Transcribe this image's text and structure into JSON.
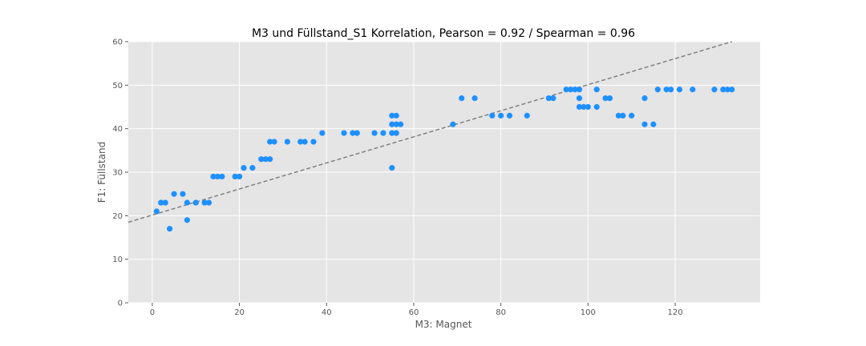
{
  "chart_data": {
    "type": "scatter",
    "title": "M3 und Füllstand_S1 Korrelation, Pearson = 0.92 / Spearman = 0.96",
    "xlabel": "M3: Magnet",
    "ylabel": "F1: Füllstand",
    "xlim": [
      -5.5,
      139.5
    ],
    "ylim": [
      0,
      60
    ],
    "xticks": [
      0,
      20,
      40,
      60,
      80,
      100,
      120
    ],
    "yticks": [
      0,
      10,
      20,
      30,
      40,
      50,
      60
    ],
    "grid": true,
    "background": "#e5e5e5",
    "point_color": "#1e90ff",
    "trend_color": "#808080",
    "trendline": {
      "x": [
        -5.5,
        133
      ],
      "y": [
        18.5,
        60
      ]
    },
    "points": [
      [
        1,
        21
      ],
      [
        2,
        23
      ],
      [
        3,
        23
      ],
      [
        4,
        17
      ],
      [
        5,
        25
      ],
      [
        7,
        25
      ],
      [
        8,
        23
      ],
      [
        8,
        19
      ],
      [
        10,
        23
      ],
      [
        12,
        23
      ],
      [
        13,
        23
      ],
      [
        14,
        29
      ],
      [
        15,
        29
      ],
      [
        16,
        29
      ],
      [
        19,
        29
      ],
      [
        20,
        29
      ],
      [
        21,
        31
      ],
      [
        23,
        31
      ],
      [
        25,
        33
      ],
      [
        26,
        33
      ],
      [
        27,
        33
      ],
      [
        27,
        37
      ],
      [
        28,
        37
      ],
      [
        31,
        37
      ],
      [
        34,
        37
      ],
      [
        35,
        37
      ],
      [
        37,
        37
      ],
      [
        39,
        39
      ],
      [
        44,
        39
      ],
      [
        46,
        39
      ],
      [
        47,
        39
      ],
      [
        51,
        39
      ],
      [
        53,
        39
      ],
      [
        55,
        39
      ],
      [
        55,
        41
      ],
      [
        55,
        43
      ],
      [
        55,
        31
      ],
      [
        56,
        43
      ],
      [
        56,
        41
      ],
      [
        56,
        39
      ],
      [
        57,
        41
      ],
      [
        69,
        41
      ],
      [
        71,
        47
      ],
      [
        74,
        47
      ],
      [
        78,
        43
      ],
      [
        80,
        43
      ],
      [
        82,
        43
      ],
      [
        86,
        43
      ],
      [
        91,
        47
      ],
      [
        92,
        47
      ],
      [
        95,
        49
      ],
      [
        96,
        49
      ],
      [
        97,
        49
      ],
      [
        98,
        49
      ],
      [
        98,
        47
      ],
      [
        98,
        45
      ],
      [
        99,
        45
      ],
      [
        100,
        45
      ],
      [
        102,
        49
      ],
      [
        102,
        45
      ],
      [
        104,
        47
      ],
      [
        105,
        47
      ],
      [
        107,
        43
      ],
      [
        108,
        43
      ],
      [
        110,
        43
      ],
      [
        113,
        47
      ],
      [
        113,
        41
      ],
      [
        115,
        41
      ],
      [
        116,
        49
      ],
      [
        118,
        49
      ],
      [
        119,
        49
      ],
      [
        121,
        49
      ],
      [
        124,
        49
      ],
      [
        129,
        49
      ],
      [
        131,
        49
      ],
      [
        132,
        49
      ],
      [
        133,
        49
      ]
    ]
  }
}
